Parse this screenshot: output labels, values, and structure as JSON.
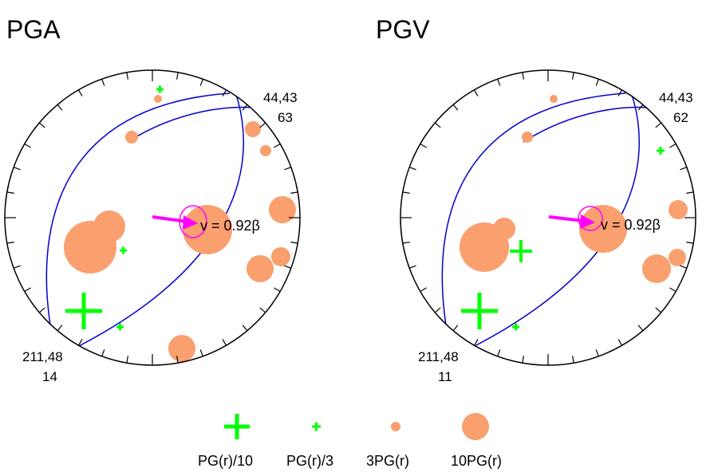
{
  "colors": {
    "positive": "#fa9f6e",
    "negative": "#00ff00",
    "planes": "#0000cd",
    "rupture": "#ff00ff",
    "outline": "#000000"
  },
  "panels": [
    {
      "title": "PGA",
      "plane_label_upper": "44,43",
      "plane_label_upper_value": "63",
      "plane_label_lower": "211,48",
      "plane_label_lower_value": "14",
      "velocity_label": "v = 0.92β"
    },
    {
      "title": "PGV",
      "plane_label_upper": "44,43",
      "plane_label_upper_value": "62",
      "plane_label_lower": "211,48",
      "plane_label_lower_value": "11",
      "velocity_label": "v = 0.92β"
    }
  ],
  "legend": [
    {
      "symbol": "plus-large",
      "label": "PG(r)/10"
    },
    {
      "symbol": "plus-small",
      "label": "PG(r)/3"
    },
    {
      "symbol": "circle-small",
      "label": "3PG(r)"
    },
    {
      "symbol": "circle-large",
      "label": "10PG(r)"
    }
  ]
}
